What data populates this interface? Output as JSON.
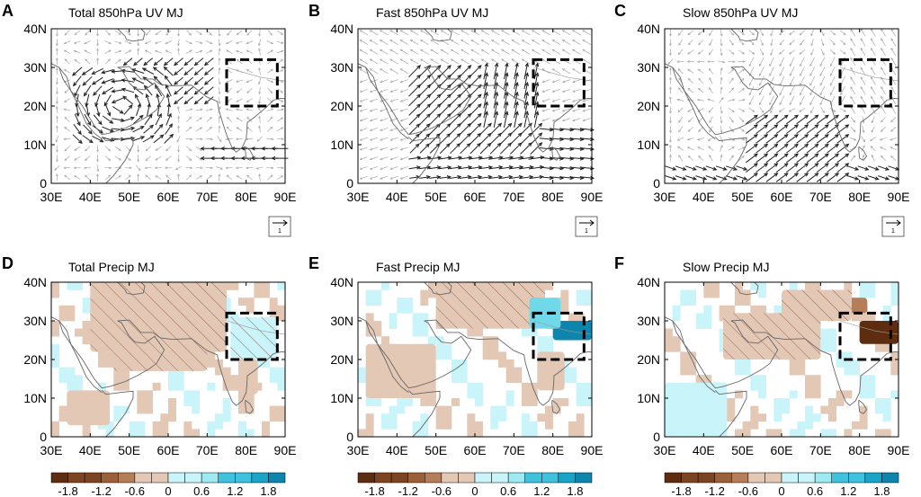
{
  "chart_data": [
    {
      "type": "vector",
      "letter": "A",
      "title": "Total 850hPa UV MJ",
      "x_ticks": [
        "30E",
        "40E",
        "50E",
        "60E",
        "70E",
        "80E",
        "90E"
      ],
      "y_ticks": [
        "0",
        "10N",
        "20N",
        "30N",
        "40N"
      ],
      "xlim": [
        30,
        90
      ],
      "ylim": [
        0,
        40
      ],
      "box": {
        "lon": [
          75,
          88
        ],
        "lat": [
          20,
          32
        ]
      },
      "reference_vector": "1",
      "key_features": [
        {
          "lon": [
            72,
            88
          ],
          "lat": [
            5,
            9
          ],
          "direction": "westward",
          "strength": "strong"
        }
      ]
    },
    {
      "type": "vector",
      "letter": "B",
      "title": "Fast 850hPa UV MJ",
      "x_ticks": [
        "30E",
        "40E",
        "50E",
        "60E",
        "70E",
        "80E",
        "90E"
      ],
      "y_ticks": [
        "0",
        "10N",
        "20N",
        "30N",
        "40N"
      ],
      "xlim": [
        30,
        90
      ],
      "ylim": [
        0,
        40
      ],
      "box": {
        "lon": [
          75,
          88
        ],
        "lat": [
          20,
          32
        ]
      },
      "reference_vector": "1",
      "key_features": [
        {
          "lon": [
            48,
            75
          ],
          "lat": [
            3,
            30
          ],
          "direction": "northeastward",
          "strength": "strong"
        }
      ]
    },
    {
      "type": "vector",
      "letter": "C",
      "title": "Slow 850hPa UV MJ",
      "x_ticks": [
        "30E",
        "40E",
        "50E",
        "60E",
        "70E",
        "80E",
        "90E"
      ],
      "y_ticks": [
        "0",
        "10N",
        "20N",
        "30N",
        "40N"
      ],
      "xlim": [
        30,
        90
      ],
      "ylim": [
        0,
        40
      ],
      "box": {
        "lon": [
          75,
          88
        ],
        "lat": [
          20,
          32
        ]
      },
      "reference_vector": "1",
      "key_features": [
        {
          "lon": [
            52,
            75
          ],
          "lat": [
            0,
            18
          ],
          "direction": "eastward",
          "strength": "strong"
        }
      ]
    },
    {
      "type": "heatmap",
      "letter": "D",
      "title": "Total Precip MJ",
      "x_ticks": [
        "30E",
        "40E",
        "50E",
        "60E",
        "70E",
        "80E",
        "90E"
      ],
      "y_ticks": [
        "0",
        "10N",
        "20N",
        "30N",
        "40N"
      ],
      "xlim": [
        30,
        90
      ],
      "ylim": [
        0,
        40
      ],
      "box": {
        "lon": [
          75,
          88
        ],
        "lat": [
          20,
          32
        ]
      },
      "colorbar_labels": [
        "-1.8",
        "-1.2",
        "-0.6",
        "0",
        "0.6",
        "1.2",
        "1.8"
      ],
      "fields": [
        {
          "lon": [
            40,
            75
          ],
          "lat": [
            22,
            40
          ],
          "value": -0.4,
          "hatched": true
        },
        {
          "lon": [
            46,
            70
          ],
          "lat": [
            17,
            26
          ],
          "value": -0.4,
          "hatched": true
        },
        {
          "lon": [
            76,
            88
          ],
          "lat": [
            20,
            31
          ],
          "value": 0.4,
          "hatched": true
        },
        {
          "lon": [
            34,
            45
          ],
          "lat": [
            3,
            12
          ],
          "value": -0.3,
          "hatched": false
        },
        {
          "lon": [
            78,
            83
          ],
          "lat": [
            11,
            20
          ],
          "value": -0.3,
          "hatched": false
        }
      ]
    },
    {
      "type": "heatmap",
      "letter": "E",
      "title": "Fast Precip MJ",
      "x_ticks": [
        "30E",
        "40E",
        "50E",
        "60E",
        "70E",
        "80E",
        "90E"
      ],
      "y_ticks": [
        "0",
        "10N",
        "20N",
        "30N",
        "40N"
      ],
      "xlim": [
        30,
        90
      ],
      "ylim": [
        0,
        40
      ],
      "box": {
        "lon": [
          75,
          88
        ],
        "lat": [
          20,
          32
        ]
      },
      "colorbar_labels": [
        "-1.8",
        "-1.2",
        "-0.6",
        "0",
        "0.6",
        "1.2",
        "1.8"
      ],
      "fields": [
        {
          "lon": [
            50,
            78
          ],
          "lat": [
            28,
            40
          ],
          "value": -0.4,
          "hatched": true
        },
        {
          "lon": [
            80,
            90
          ],
          "lat": [
            25,
            30
          ],
          "value": 1.8,
          "hatched": false
        },
        {
          "lon": [
            74,
            82
          ],
          "lat": [
            28,
            36
          ],
          "value": 0.9,
          "hatched": false
        },
        {
          "lon": [
            32,
            50
          ],
          "lat": [
            10,
            24
          ],
          "value": -0.3,
          "hatched": false
        },
        {
          "lon": [
            76,
            83
          ],
          "lat": [
            12,
            22
          ],
          "value": -0.4,
          "hatched": false
        }
      ]
    },
    {
      "type": "heatmap",
      "letter": "F",
      "title": "Slow Precip MJ",
      "x_ticks": [
        "30E",
        "40E",
        "50E",
        "60E",
        "70E",
        "80E",
        "90E"
      ],
      "y_ticks": [
        "0",
        "10N",
        "20N",
        "30N",
        "40N"
      ],
      "xlim": [
        30,
        90
      ],
      "ylim": [
        0,
        40
      ],
      "box": {
        "lon": [
          75,
          88
        ],
        "lat": [
          20,
          32
        ]
      },
      "colorbar_labels": [
        "-1.8",
        "-1.2",
        "-0.6",
        "0",
        "0.6",
        "1.2",
        "1.8"
      ],
      "fields": [
        {
          "lon": [
            80,
            90
          ],
          "lat": [
            24,
            30
          ],
          "value": -1.8,
          "hatched": false
        },
        {
          "lon": [
            72,
            82
          ],
          "lat": [
            32,
            36
          ],
          "value": -0.8,
          "hatched": false
        },
        {
          "lon": [
            45,
            70
          ],
          "lat": [
            20,
            32
          ],
          "value": -0.4,
          "hatched": true
        },
        {
          "lon": [
            30,
            46
          ],
          "lat": [
            0,
            14
          ],
          "value": 0.4,
          "hatched": false
        },
        {
          "lon": [
            60,
            78
          ],
          "lat": [
            30,
            38
          ],
          "value": -0.4,
          "hatched": true
        }
      ]
    }
  ]
}
